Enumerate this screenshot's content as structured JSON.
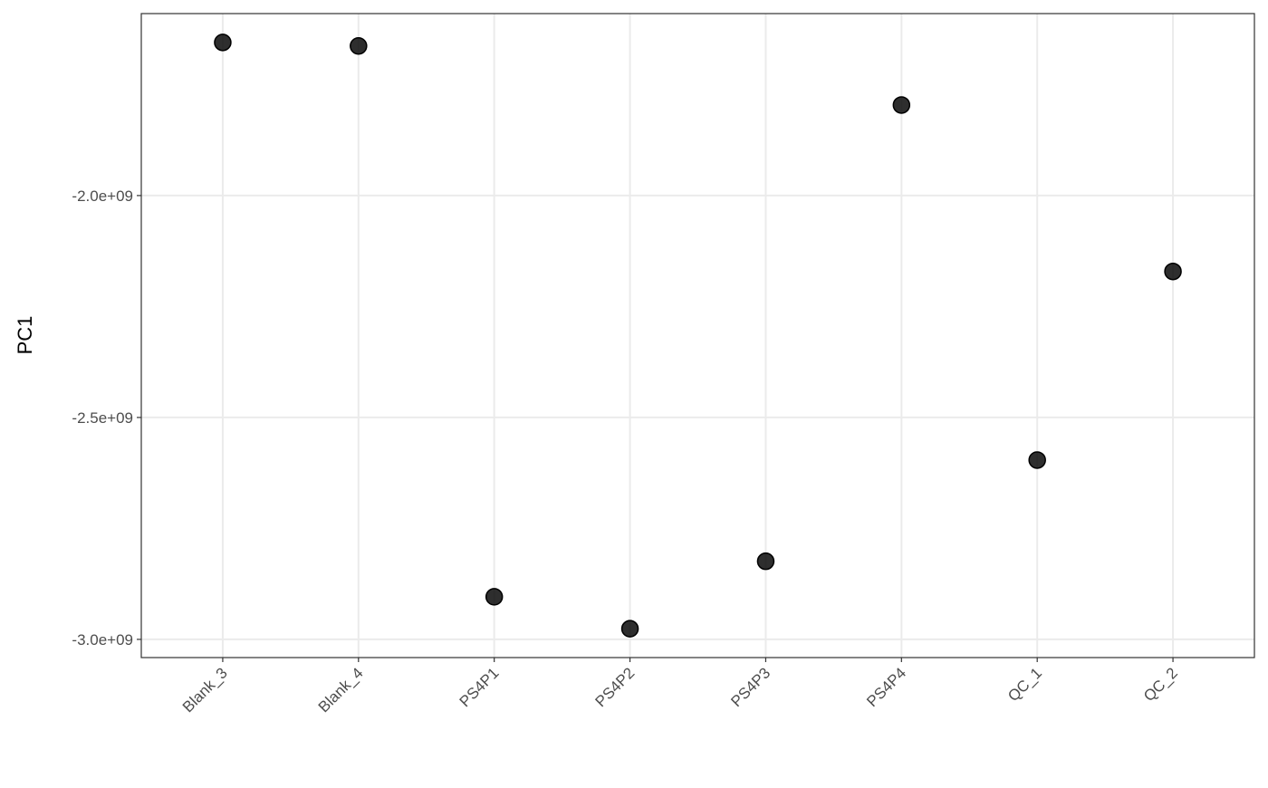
{
  "chart_data": {
    "type": "point",
    "y_label": "PC1",
    "categories": [
      "Blank_3",
      "Blank_4",
      "PS4P1",
      "PS4P2",
      "PS4P3",
      "PS4P4",
      "QC_1",
      "QC_2"
    ],
    "values": [
      -1655000000,
      -1663000000,
      -2904000000,
      -2976000000,
      -2824000000,
      -1796000000,
      -2596000000,
      -2171000000
    ],
    "color": "#000000",
    "ylim": [
      -3041000000,
      -1590000000
    ],
    "yticks": [
      {
        "value": -3000000000,
        "label": "-3.0e+09"
      },
      {
        "value": -2500000000,
        "label": "-2.5e+09"
      },
      {
        "value": -2000000000,
        "label": "-2.0e+09"
      }
    ],
    "grid": true
  }
}
